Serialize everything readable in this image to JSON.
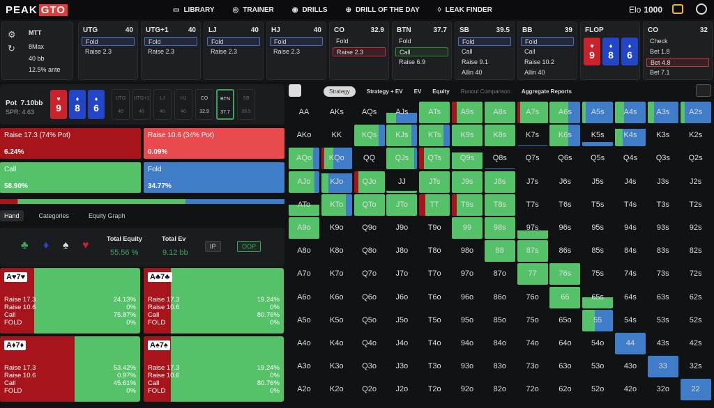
{
  "app": {
    "logo_a": "PEAK",
    "logo_b": "GTO"
  },
  "nav": [
    {
      "label": "LIBRARY",
      "icon": "library-icon"
    },
    {
      "label": "TRAINER",
      "icon": "gamepad-icon"
    },
    {
      "label": "DRILLS",
      "icon": "target-icon"
    },
    {
      "label": "DRILL OF THE DAY",
      "icon": "plus-circle-icon"
    },
    {
      "label": "LEAK FINDER",
      "icon": "drop-icon"
    }
  ],
  "elo": {
    "label": "Elo",
    "value": "1000"
  },
  "settings": {
    "format": "MTT",
    "table": "8Max",
    "depth": "40 bb",
    "ante": "12.5% ante"
  },
  "positions": [
    {
      "name": "UTG",
      "stack": "40",
      "actions": [
        "Fold",
        "Raise 2.3"
      ],
      "selected": 0,
      "sel_color": "blue"
    },
    {
      "name": "UTG+1",
      "stack": "40",
      "actions": [
        "Fold",
        "Raise 2.3"
      ],
      "selected": 0,
      "sel_color": "blue"
    },
    {
      "name": "LJ",
      "stack": "40",
      "actions": [
        "Fold",
        "Raise 2.3"
      ],
      "selected": 0,
      "sel_color": "blue"
    },
    {
      "name": "HJ",
      "stack": "40",
      "actions": [
        "Fold",
        "Raise 2.3"
      ],
      "selected": 0,
      "sel_color": "blue"
    },
    {
      "name": "CO",
      "stack": "32.9",
      "actions": [
        "Fold",
        "Raise 2.3"
      ],
      "selected": 1,
      "sel_color": "red"
    },
    {
      "name": "BTN",
      "stack": "37.7",
      "actions": [
        "Fold",
        "Call",
        "Raise 6.9"
      ],
      "selected": 1,
      "sel_color": "green"
    },
    {
      "name": "SB",
      "stack": "39.5",
      "actions": [
        "Fold",
        "Call",
        "Raise 9.1",
        "Allin 40"
      ],
      "selected": 0,
      "sel_color": "blue"
    },
    {
      "name": "BB",
      "stack": "39",
      "actions": [
        "Fold",
        "Call",
        "Raise 10.2",
        "Allin 40"
      ],
      "selected": 0,
      "sel_color": "blue"
    },
    {
      "name": "FLOP",
      "stack": "",
      "actions": [],
      "selected": -1,
      "sel_color": "blue"
    },
    {
      "name": "CO",
      "stack": "32",
      "actions": [
        "Check",
        "Bet 1.8",
        "Bet 4.8",
        "Bet 7.1"
      ],
      "selected": 2,
      "sel_color": "red"
    }
  ],
  "board": [
    {
      "rank": "9",
      "suit": "♥",
      "color": "red"
    },
    {
      "rank": "8",
      "suit": "♦",
      "color": "blue"
    },
    {
      "rank": "6",
      "suit": "♦",
      "color": "blue"
    }
  ],
  "pot": {
    "label": "Pot",
    "value": "7.10bb",
    "spr": "SPR: 4.63"
  },
  "seats": [
    {
      "name": "UTG",
      "stack": "40"
    },
    {
      "name": "UTG+1",
      "stack": "40"
    },
    {
      "name": "LJ",
      "stack": "40"
    },
    {
      "name": "HJ",
      "stack": "40"
    },
    {
      "name": "CO",
      "stack": "32.9"
    },
    {
      "name": "BTN",
      "stack": "37.7"
    },
    {
      "name": "SB",
      "stack": "39.5"
    }
  ],
  "actions_summary": [
    {
      "name": "Raise 17.3 (74% Pot)",
      "pct": "6.24%",
      "color": "#a8141b"
    },
    {
      "name": "Raise 10.6 (34% Pot)",
      "pct": "0.09%",
      "color": "#e84a4e"
    },
    {
      "name": "Call",
      "pct": "58.90%",
      "color": "#55c26a"
    },
    {
      "name": "Fold",
      "pct": "34.77%",
      "color": "#3f7dc9"
    }
  ],
  "tabs": [
    "Hand",
    "Categories",
    "Equity Graph"
  ],
  "equity": {
    "title": "Total Equity",
    "value": "55.56 %",
    "ev_title": "Total Ev",
    "ev_value": "9.12 bb",
    "ip": "IP",
    "oop": "OOP"
  },
  "combos": [
    {
      "label": "A♥7♥",
      "raise_big": 0.2413,
      "rows": [
        [
          "Raise 17.3",
          "24.13%"
        ],
        [
          "Raise 10.6",
          "0%"
        ],
        [
          "Call",
          "75.87%"
        ],
        [
          "FOLD",
          "0%"
        ]
      ]
    },
    {
      "label": "A♣7♣",
      "raise_big": 0.1924,
      "rows": [
        [
          "Raise 17.3",
          "19.24%"
        ],
        [
          "Raise 10.6",
          "0%"
        ],
        [
          "Call",
          "80.76%"
        ],
        [
          "FOLD",
          "0%"
        ]
      ]
    },
    {
      "label": "A♦7♦",
      "raise_big": 0.5342,
      "rows": [
        [
          "Raise 17.3",
          "53.42%"
        ],
        [
          "Raise 10.6",
          "0.97%"
        ],
        [
          "Call",
          "45.61%"
        ],
        [
          "FOLD",
          "0%"
        ]
      ]
    },
    {
      "label": "A♠7♠",
      "raise_big": 0.1924,
      "rows": [
        [
          "Raise 17.3",
          "19.24%"
        ],
        [
          "Raise 10.6",
          "0%"
        ],
        [
          "Call",
          "80.76%"
        ],
        [
          "FOLD",
          "0%"
        ]
      ]
    }
  ],
  "strategy_tabs": [
    "Strategy",
    "Strategy + EV",
    "EV",
    "Equity",
    "Runout Comparison",
    "Aggregate Reports"
  ],
  "colors": {
    "raise_big": "#a8141b",
    "raise_small": "#e84a4e",
    "call": "#55c26a",
    "fold": "#3f7dc9"
  },
  "grid_ranks": [
    "A",
    "K",
    "Q",
    "J",
    "T",
    "9",
    "8",
    "7",
    "6",
    "5",
    "4",
    "3",
    "2"
  ],
  "grid_mix": {
    "AJs": [
      0,
      0,
      0.15,
      0.35
    ],
    "ATs": [
      0,
      0,
      1,
      0
    ],
    "A9s": [
      0.15,
      0,
      0.85,
      0
    ],
    "A8s": [
      0,
      0,
      1,
      0
    ],
    "A7s": [
      0.1,
      0,
      0.9,
      0
    ],
    "A6s": [
      0,
      0,
      0.6,
      0.4
    ],
    "A5s": [
      0,
      0,
      0.1,
      0.9
    ],
    "A4s": [
      0,
      0,
      0.3,
      0.7
    ],
    "A3s": [
      0,
      0,
      0.2,
      0.8
    ],
    "A2s": [
      0,
      0,
      0.15,
      0.85
    ],
    "KQs": [
      0,
      0,
      0.8,
      0.2
    ],
    "KJs": [
      0,
      0,
      0.8,
      0.2
    ],
    "KTs": [
      0,
      0,
      0.8,
      0.2
    ],
    "K9s": [
      0,
      0,
      1,
      0
    ],
    "K8s": [
      0,
      0,
      1,
      0
    ],
    "K7s": [
      0,
      0,
      0,
      0.05
    ],
    "K6s": [
      0,
      0,
      0.6,
      0.4
    ],
    "K5s": [
      0,
      0,
      0,
      0.2
    ],
    "K4s": [
      0,
      0,
      0.2,
      0.6
    ],
    "AQo": [
      0,
      0,
      0.8,
      0.2
    ],
    "KQo": [
      0.1,
      0,
      0.3,
      0.6
    ],
    "QJs": [
      0,
      0,
      0.9,
      0.1
    ],
    "QTs": [
      0.15,
      0,
      0.85,
      0
    ],
    "Q9s": [
      0,
      0,
      0.8,
      0
    ],
    "Q8s": [
      0,
      0,
      0,
      0.05
    ],
    "AJo": [
      0,
      0,
      0.85,
      0.15
    ],
    "KJo": [
      0,
      0,
      0.2,
      0.7
    ],
    "QJo": [
      0.15,
      0,
      0.85,
      0
    ],
    "JJ": [
      0,
      0,
      0.1,
      0
    ],
    "JTs": [
      0,
      0,
      1,
      0
    ],
    "J9s": [
      0,
      0,
      1,
      0
    ],
    "J8s": [
      0,
      0,
      1,
      0
    ],
    "ATo": [
      0,
      0,
      0.5,
      0
    ],
    "KTo": [
      0,
      0,
      0.8,
      0.2
    ],
    "QTo": [
      0,
      0,
      1,
      0
    ],
    "JTo": [
      0,
      0,
      1,
      0
    ],
    "TT": [
      0.2,
      0,
      0.8,
      0
    ],
    "T9s": [
      0.15,
      0,
      0.85,
      0
    ],
    "T8s": [
      0,
      0,
      1,
      0
    ],
    "A9o": [
      0,
      0,
      1,
      0
    ],
    "99": [
      0,
      0,
      1,
      0
    ],
    "98s": [
      0,
      0,
      1,
      0
    ],
    "97s": [
      0,
      0,
      0.4,
      0
    ],
    "88": [
      0,
      0,
      1,
      0
    ],
    "87s": [
      0,
      0,
      1,
      0
    ],
    "77": [
      0,
      0,
      1,
      0
    ],
    "76s": [
      0,
      0,
      1,
      0
    ],
    "66": [
      0,
      0,
      1,
      0
    ],
    "65s": [
      0,
      0,
      0.5,
      0
    ],
    "55": [
      0,
      0,
      0.4,
      0.6
    ],
    "44": [
      0,
      0,
      0,
      1
    ],
    "33": [
      0,
      0,
      0,
      1
    ],
    "22": [
      0,
      0,
      0,
      1
    ]
  }
}
